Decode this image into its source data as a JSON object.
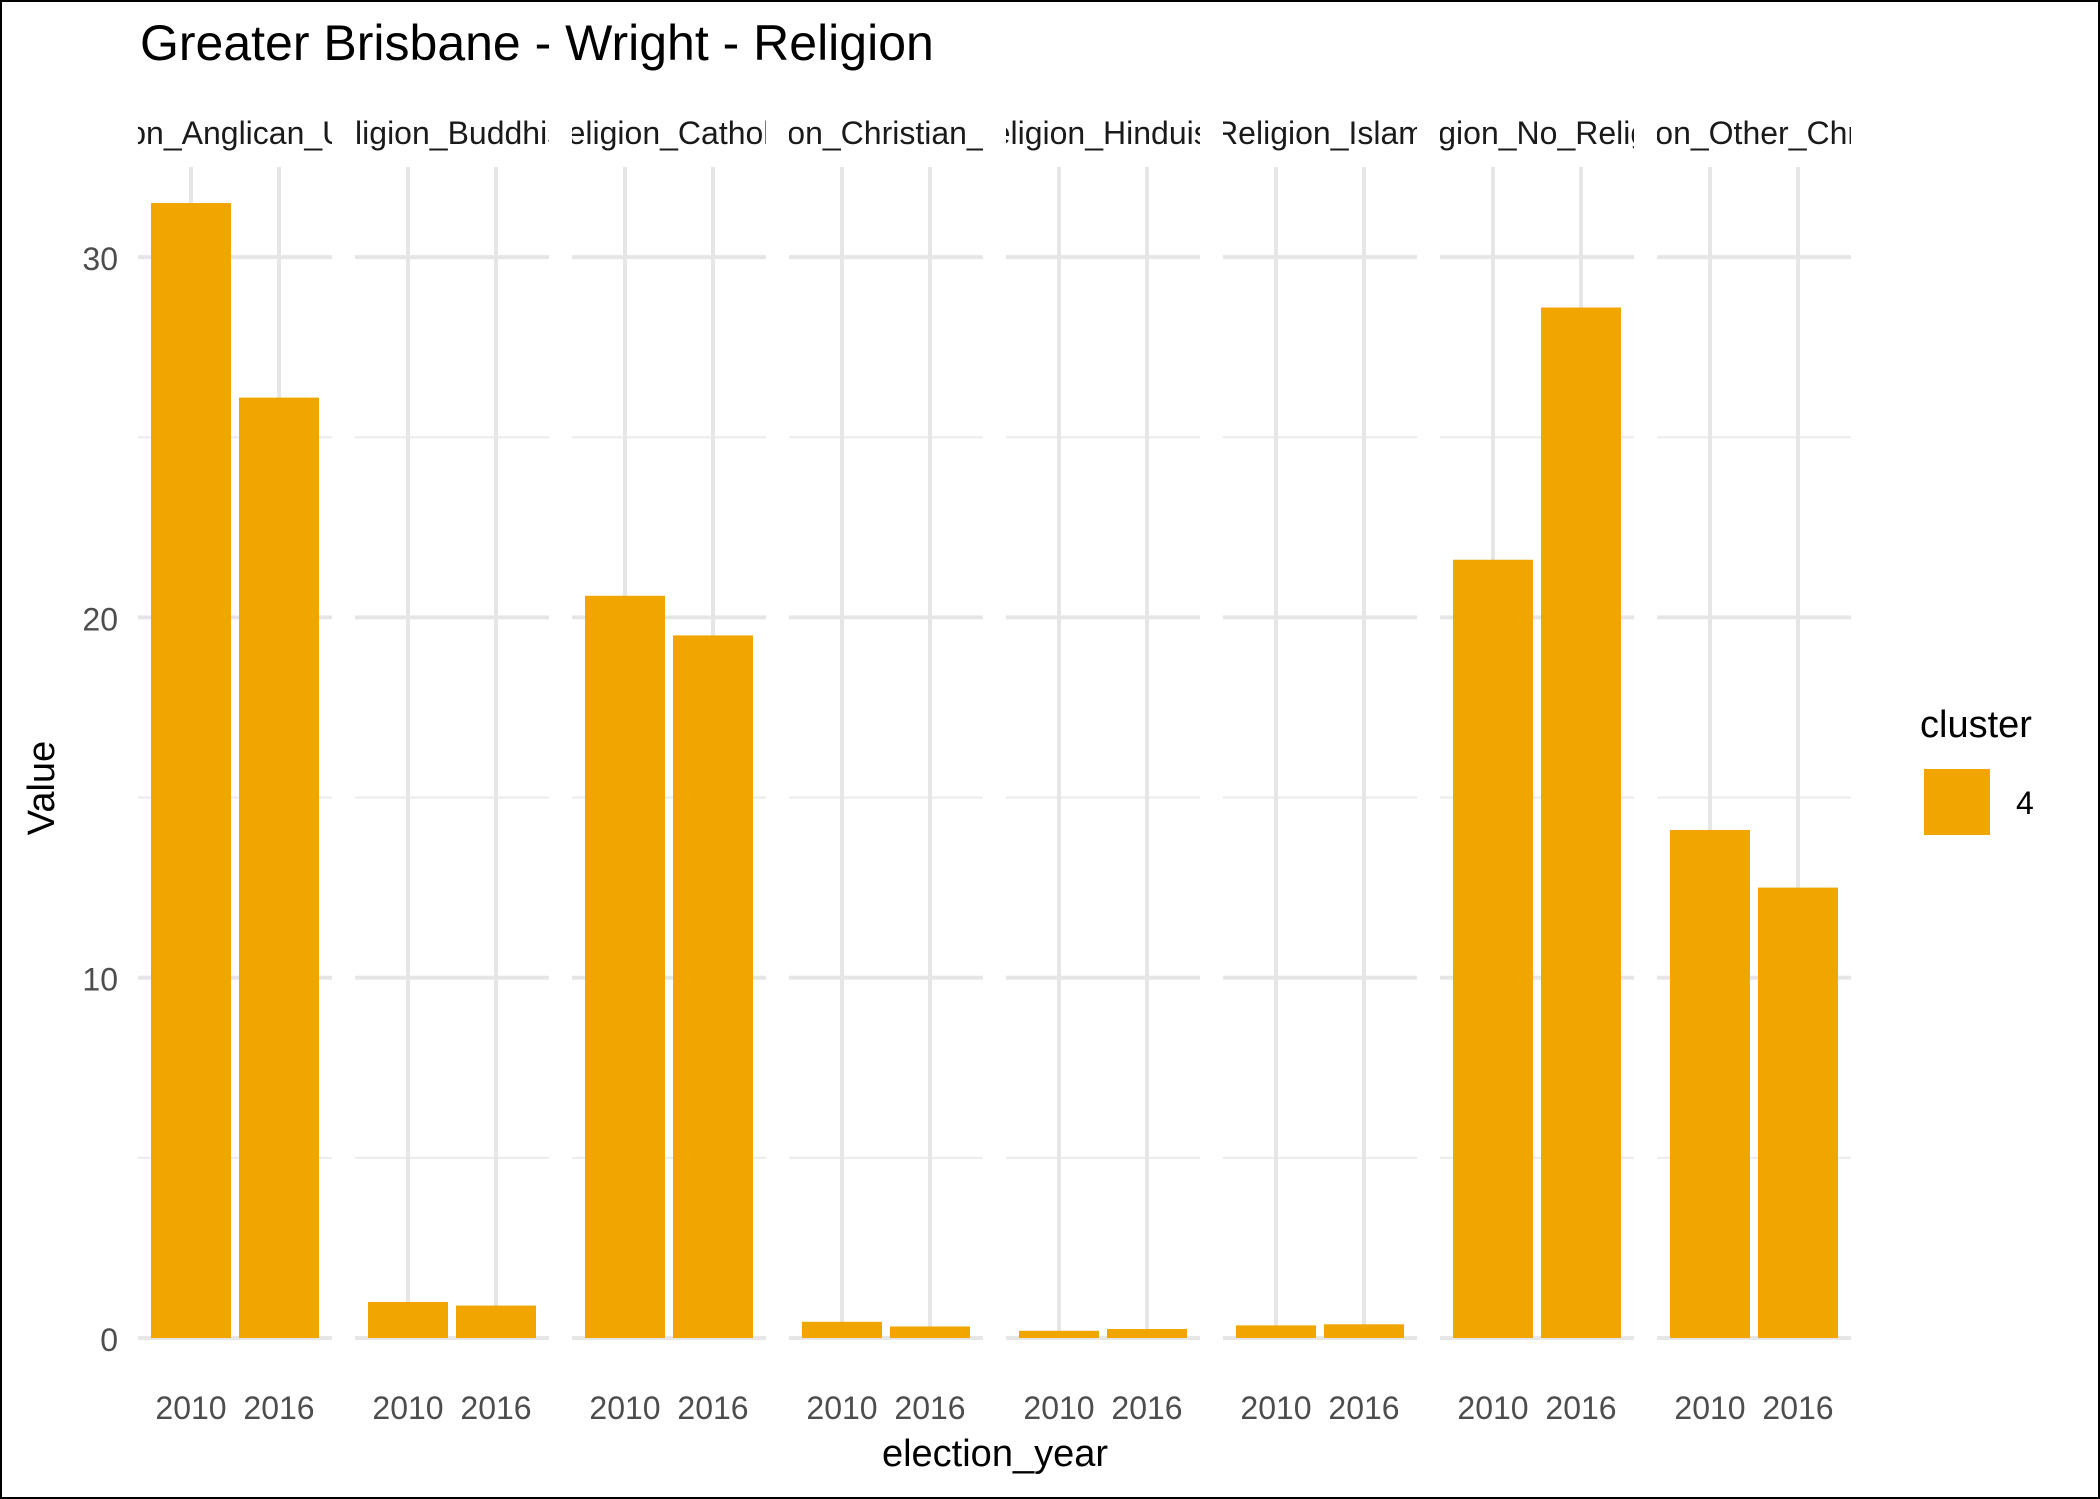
{
  "chart_data": {
    "type": "bar",
    "title": "Greater Brisbane - Wright - Religion",
    "xlabel": "election_year",
    "ylabel": "Value",
    "ylim": [
      0,
      32.5
    ],
    "yticks": [
      0,
      10,
      20,
      30
    ],
    "categories": [
      "2010",
      "2016"
    ],
    "facets": [
      {
        "label": "Religion_Anglican_Uniting",
        "values": [
          31.5,
          26.1
        ]
      },
      {
        "label": "Religion_Buddhism",
        "values": [
          1.0,
          0.9
        ]
      },
      {
        "label": "Religion_Catholic",
        "values": [
          20.6,
          19.5
        ]
      },
      {
        "label": "Religion_Christian_Other",
        "values": [
          0.45,
          0.32
        ]
      },
      {
        "label": "Religion_Hinduism",
        "values": [
          0.2,
          0.25
        ]
      },
      {
        "label": "Religion_Islam",
        "values": [
          0.35,
          0.38
        ]
      },
      {
        "label": "Religion_No_Religion",
        "values": [
          21.6,
          28.6
        ]
      },
      {
        "label": "Religion_Other_Christian",
        "values": [
          14.1,
          12.5
        ]
      }
    ],
    "legend": {
      "title": "cluster",
      "placement": "right",
      "entries": [
        {
          "label": "4",
          "color": "#F0A500"
        }
      ]
    },
    "grid": true,
    "bar_color": "#F0A500"
  }
}
